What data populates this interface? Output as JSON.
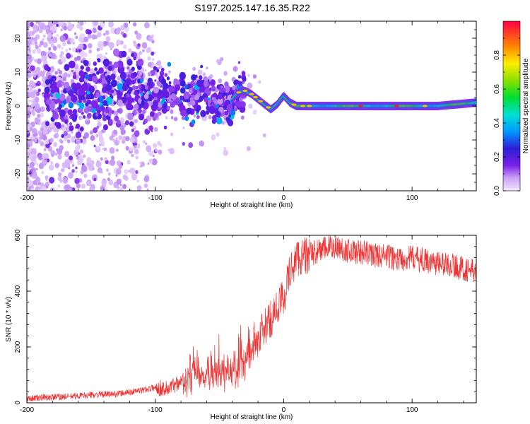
{
  "title": "S197.2025.147.16.35.R22",
  "chart_data": [
    {
      "type": "heatmap",
      "xlabel": "Height of straight line (km)",
      "ylabel": "Frequency (Hz)",
      "xlim": [
        -200,
        150
      ],
      "ylim": [
        -25,
        25
      ],
      "x_ticks": [
        -200,
        -100,
        0,
        100
      ],
      "y_ticks": [
        -20,
        -10,
        0,
        10,
        20
      ],
      "colorbar": {
        "label": "Normalized spectral amplitude",
        "range": [
          0,
          1
        ],
        "ticks": [
          0.0,
          0.2,
          0.4,
          0.6,
          0.8
        ],
        "tick_labels": [
          "0.0",
          "0.2",
          "0.4",
          "0.6",
          "0.8"
        ]
      },
      "ridge": {
        "x": [
          -180,
          -160,
          -140,
          -120,
          -100,
          -80,
          -60,
          -45,
          -35,
          -30,
          -25,
          -20,
          -15,
          -10,
          -5,
          0,
          5,
          10,
          20,
          40,
          60,
          80,
          100,
          120,
          150
        ],
        "freq": [
          2,
          3,
          3,
          6,
          4,
          2,
          4,
          0,
          4,
          4.5,
          3.5,
          2,
          0.5,
          -1,
          0.5,
          3,
          1,
          0,
          0,
          0,
          0,
          0,
          0,
          0,
          1
        ]
      },
      "grid": false
    },
    {
      "type": "line",
      "xlabel": "Height of straight line (km)",
      "ylabel": "SNR (10 * v/v)",
      "xlim": [
        -200,
        150
      ],
      "ylim": [
        0,
        600
      ],
      "x_ticks": [
        -200,
        -100,
        0,
        100
      ],
      "y_ticks": [
        0,
        200,
        400,
        600
      ],
      "color": "#ee3333",
      "series": [
        {
          "x": [
            -200,
            -190,
            -180,
            -170,
            -160,
            -150,
            -140,
            -130,
            -120,
            -110,
            -100,
            -90,
            -80,
            -70,
            -60,
            -50,
            -40,
            -30,
            -20,
            -10,
            0,
            5,
            10,
            20,
            30,
            40,
            50,
            60,
            70,
            80,
            90,
            100,
            110,
            120,
            130,
            140,
            150
          ],
          "values": [
            15,
            18,
            20,
            22,
            25,
            28,
            30,
            32,
            38,
            45,
            55,
            50,
            80,
            120,
            100,
            110,
            95,
            160,
            230,
            300,
            380,
            470,
            520,
            530,
            550,
            560,
            545,
            540,
            530,
            525,
            515,
            520,
            510,
            500,
            495,
            480,
            470
          ]
        }
      ],
      "grid": false
    }
  ]
}
